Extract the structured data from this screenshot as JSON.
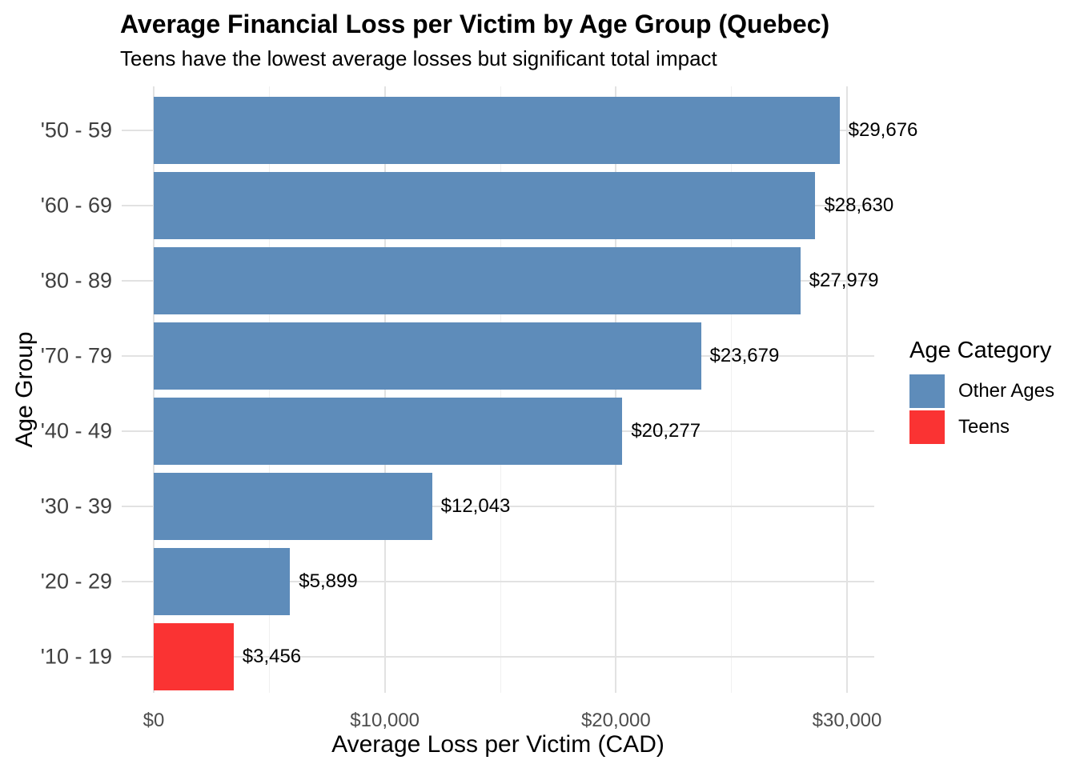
{
  "chart_data": {
    "type": "bar",
    "orientation": "horizontal",
    "title": "Average Financial Loss per Victim by Age Group (Quebec)",
    "subtitle": "Teens have the lowest average losses but significant total impact",
    "xlabel": "Average Loss per Victim (CAD)",
    "ylabel": "Age Group",
    "categories": [
      "'50 - 59",
      "'60 - 69",
      "'80 - 89",
      "'70 - 79",
      "'40 - 49",
      "'30 - 39",
      "'20 - 29",
      "'10 - 19"
    ],
    "values": [
      29676,
      28630,
      27979,
      23679,
      20277,
      12043,
      5899,
      3456
    ],
    "bar_labels": [
      "$29,676",
      "$28,630",
      "$27,979",
      "$23,679",
      "$20,277",
      "$12,043",
      "$5,899",
      "$3,456"
    ],
    "groups": [
      "Other Ages",
      "Other Ages",
      "Other Ages",
      "Other Ages",
      "Other Ages",
      "Other Ages",
      "Other Ages",
      "Teens"
    ],
    "palette": {
      "Other Ages": "#5E8CBA",
      "Teens": "#FA3333"
    },
    "x_ticks": [
      {
        "value": 0,
        "label": "$0"
      },
      {
        "value": 10000,
        "label": "$10,000"
      },
      {
        "value": 20000,
        "label": "$20,000"
      },
      {
        "value": 30000,
        "label": "$30,000"
      }
    ],
    "x_minor_ticks": [
      5000,
      15000,
      25000
    ],
    "xlim": [
      0,
      31000
    ],
    "grid": {
      "vertical": "major at 10000 steps, minor at 5000 steps",
      "horizontal": "major at category centers"
    },
    "background": "#FFFFFF",
    "legend": {
      "title": "Age Category",
      "position": "right",
      "items": [
        {
          "label": "Other Ages",
          "color": "#5E8CBA"
        },
        {
          "label": "Teens",
          "color": "#FA3333"
        }
      ]
    }
  }
}
